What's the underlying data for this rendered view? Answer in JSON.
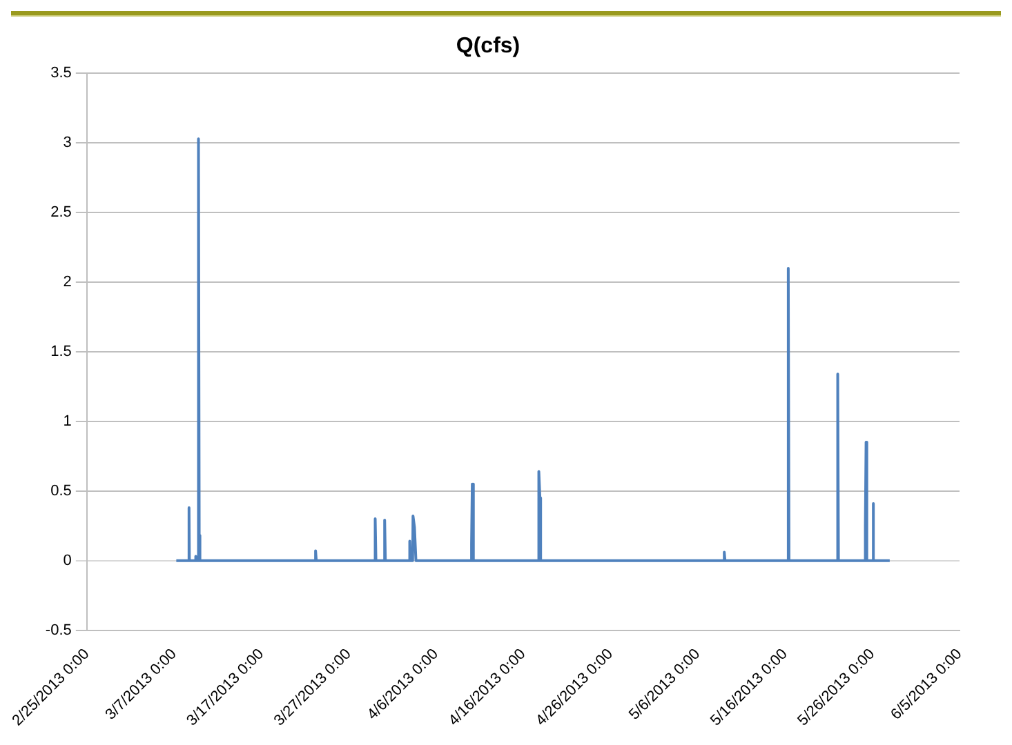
{
  "chart_data": {
    "type": "line",
    "title": "Q(cfs)",
    "x": [
      "2013-03-07T06:00",
      "2013-03-08T16:00",
      "2013-03-08T17:00",
      "2013-03-08T18:00",
      "2013-03-09T10:00",
      "2013-03-09T11:00",
      "2013-03-09T12:00",
      "2013-03-09T18:00",
      "2013-03-09T19:00",
      "2013-03-09T21:00",
      "2013-03-09T23:00",
      "2013-03-23T04:00",
      "2013-03-23T05:00",
      "2013-03-23T07:00",
      "2013-03-30T00:00",
      "2013-03-30T01:00",
      "2013-03-30T03:00",
      "2013-03-31T02:00",
      "2013-03-31T03:00",
      "2013-03-31T05:00",
      "2013-04-02T23:00",
      "2013-04-03T00:00",
      "2013-04-03T02:00",
      "2013-04-03T08:00",
      "2013-04-03T09:00",
      "2013-04-03T13:00",
      "2013-04-03T17:00",
      "2013-04-10T00:00",
      "2013-04-10T02:00",
      "2013-04-10T04:00",
      "2013-04-10T07:00",
      "2013-04-17T18:00",
      "2013-04-17T19:00",
      "2013-04-17T22:00",
      "2013-04-18T00:00",
      "2013-05-09T00:00",
      "2013-05-09T01:00",
      "2013-05-09T03:00",
      "2013-05-16T08:00",
      "2013-05-16T09:00",
      "2013-05-16T11:00",
      "2013-05-22T00:00",
      "2013-05-22T01:00",
      "2013-05-22T03:00",
      "2013-05-25T04:00",
      "2013-05-25T05:00",
      "2013-05-25T07:00",
      "2013-05-25T09:00",
      "2013-05-26T01:00",
      "2013-05-26T02:00",
      "2013-05-26T04:00",
      "2013-05-28T00:00"
    ],
    "series": [
      {
        "color": "#4f81bd",
        "values": [
          0,
          0,
          0.38,
          0,
          0,
          0.03,
          0,
          0,
          3.03,
          0.18,
          0,
          0,
          0.07,
          0,
          0,
          0.3,
          0,
          0,
          0.29,
          0,
          0,
          0.14,
          0,
          0,
          0.32,
          0.24,
          0,
          0,
          0.12,
          0.55,
          0,
          0,
          0.64,
          0.45,
          0,
          0,
          0.06,
          0,
          0,
          2.1,
          0,
          0,
          1.34,
          0,
          0,
          0.25,
          0.85,
          0,
          0,
          0.41,
          0,
          0
        ]
      }
    ],
    "xlim": [
      "2013-02-25",
      "2013-06-05"
    ],
    "xticks": [
      {
        "value": "2013-02-25",
        "label": "2/25/2013 0:00"
      },
      {
        "value": "2013-03-07",
        "label": "3/7/2013 0:00"
      },
      {
        "value": "2013-03-17",
        "label": "3/17/2013 0:00"
      },
      {
        "value": "2013-03-27",
        "label": "3/27/2013 0:00"
      },
      {
        "value": "2013-04-06",
        "label": "4/6/2013 0:00"
      },
      {
        "value": "2013-04-16",
        "label": "4/16/2013 0:00"
      },
      {
        "value": "2013-04-26",
        "label": "4/26/2013 0:00"
      },
      {
        "value": "2013-05-06",
        "label": "5/6/2013 0:00"
      },
      {
        "value": "2013-05-16",
        "label": "5/16/2013 0:00"
      },
      {
        "value": "2013-05-26",
        "label": "5/26/2013 0:00"
      },
      {
        "value": "2013-06-05",
        "label": "6/5/2013 0:00"
      }
    ],
    "ylim": [
      -0.5,
      3.5
    ],
    "yticks": [
      -0.5,
      0,
      0.5,
      1,
      1.5,
      2,
      2.5,
      3,
      3.5
    ],
    "grid": "y",
    "legend": false,
    "marker": "none",
    "line_style": "solid"
  }
}
